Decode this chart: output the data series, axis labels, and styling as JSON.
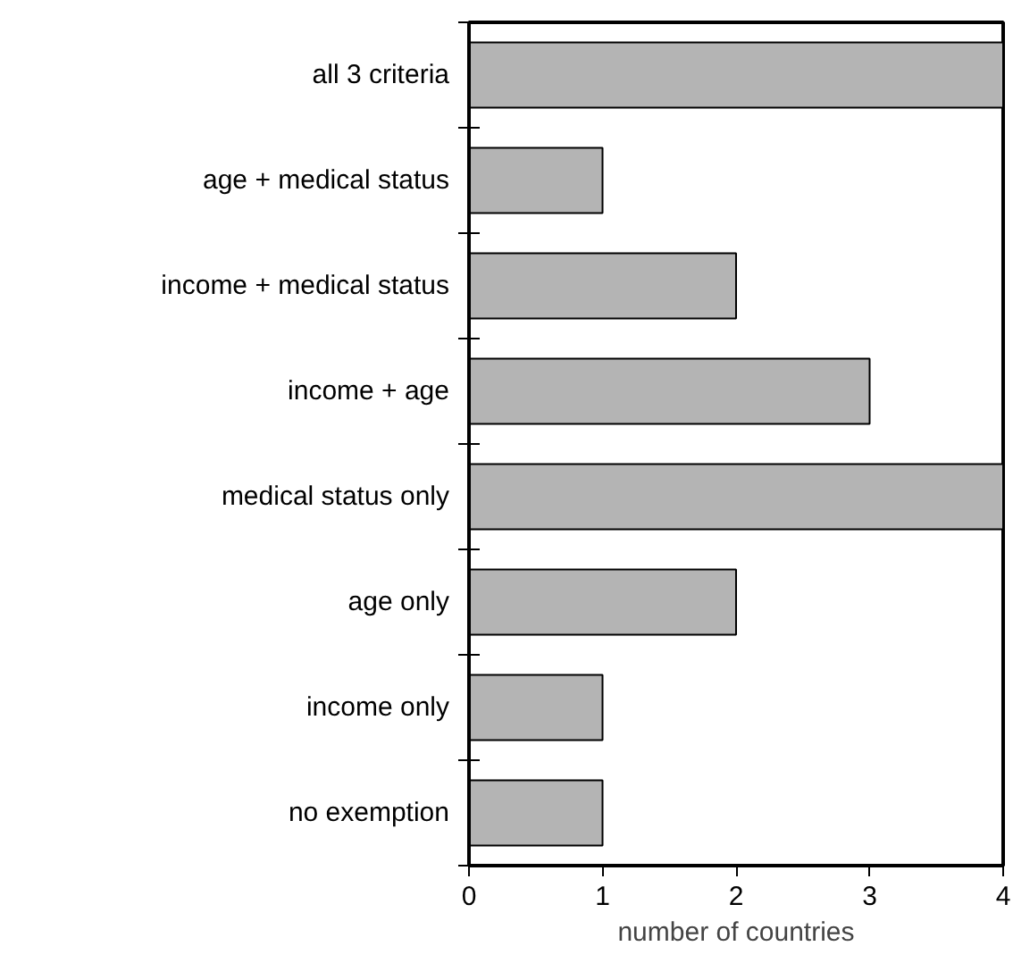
{
  "chart_data": {
    "type": "bar",
    "orientation": "horizontal",
    "xlabel": "number of countries",
    "categories": [
      "all 3 criteria",
      "age + medical status",
      "income + medical status",
      "income + age",
      "medical status only",
      "age only",
      "income only",
      "no exemption"
    ],
    "values": [
      4,
      1,
      2,
      3,
      4,
      2,
      1,
      1
    ],
    "color": "#b4b4b4",
    "xlim": [
      0,
      4
    ],
    "xticks": [
      0,
      1,
      2,
      3,
      4
    ],
    "grid": false
  }
}
